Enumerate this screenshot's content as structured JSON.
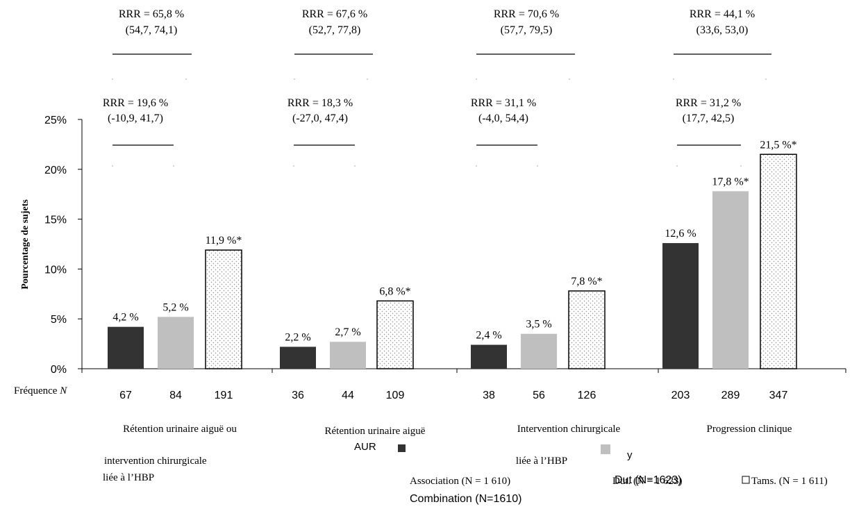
{
  "chart_data": {
    "type": "bar",
    "ylabel": "Pourcentage de sujets",
    "ylim": [
      0,
      25
    ],
    "yticks": [
      "0%",
      "5%",
      "10%",
      "15%",
      "20%",
      "25%"
    ],
    "frequency_label": "Fréquence N",
    "groups": [
      {
        "label_lines": [
          "Rétention urinaire aiguë ou",
          "intervention chirurgicale",
          "liée à l’HBP"
        ],
        "values": [
          4.2,
          5.2,
          11.9
        ],
        "value_labels": [
          "4,2 %",
          "5,2 %",
          "11,9 %*"
        ],
        "frequencies": [
          "67",
          "84",
          "191"
        ],
        "rrr_top": {
          "text": "RRR = 65,8 %",
          "ci": "(54,7, 74,1)"
        },
        "rrr_bottom": {
          "text": "RRR = 19,6 %",
          "ci": "(-10,9, 41,7)"
        }
      },
      {
        "label_lines": [
          "Rétention urinaire aiguë"
        ],
        "values": [
          2.2,
          2.7,
          6.8
        ],
        "value_labels": [
          "2,2 %",
          "2,7 %",
          "6,8 %*"
        ],
        "frequencies": [
          "36",
          "44",
          "109"
        ],
        "rrr_top": {
          "text": "RRR = 67,6 %",
          "ci": "(52,7, 77,8)"
        },
        "rrr_bottom": {
          "text": "RRR = 18,3 %",
          "ci": "(-27,0, 47,4)"
        }
      },
      {
        "label_lines": [
          "Intervention chirurgicale",
          "liée à l’HBP"
        ],
        "values": [
          2.4,
          3.5,
          7.8
        ],
        "value_labels": [
          "2,4 %",
          "3,5 %",
          "7,8 %*"
        ],
        "frequencies": [
          "38",
          "56",
          "126"
        ],
        "rrr_top": {
          "text": "RRR = 70,6 %",
          "ci": "(57,7, 79,5)"
        },
        "rrr_bottom": {
          "text": "RRR = 31,1 %",
          "ci": "(-4,0, 54,4)"
        }
      },
      {
        "label_lines": [
          "Progression clinique"
        ],
        "values": [
          12.6,
          17.8,
          21.5
        ],
        "value_labels": [
          "12,6 %",
          "17,8 %*",
          "21,5 %*"
        ],
        "frequencies": [
          "203",
          "289",
          "347"
        ],
        "rrr_top": {
          "text": "RRR = 44,1 %",
          "ci": "(33,6, 53,0)"
        },
        "rrr_bottom": {
          "text": "RRR = 31,2 %",
          "ci": "(17,7, 42,5)"
        }
      }
    ],
    "series": [
      {
        "name": "Association",
        "n": "(N = 1 610)",
        "color": "#333333",
        "pattern": "solid"
      },
      {
        "name": "Dut.",
        "n": "(N = 1 623)",
        "color": "#bfbfbf",
        "pattern": "solid"
      },
      {
        "name": "Tams.",
        "n": "(N = 1 611)",
        "color": "#ffffff",
        "pattern": "dotted"
      }
    ],
    "legend_overlay": {
      "aur": "AUR",
      "y": "y",
      "dut": "Dut (N=1623)",
      "combination": "Combination (N=1610)"
    }
  }
}
